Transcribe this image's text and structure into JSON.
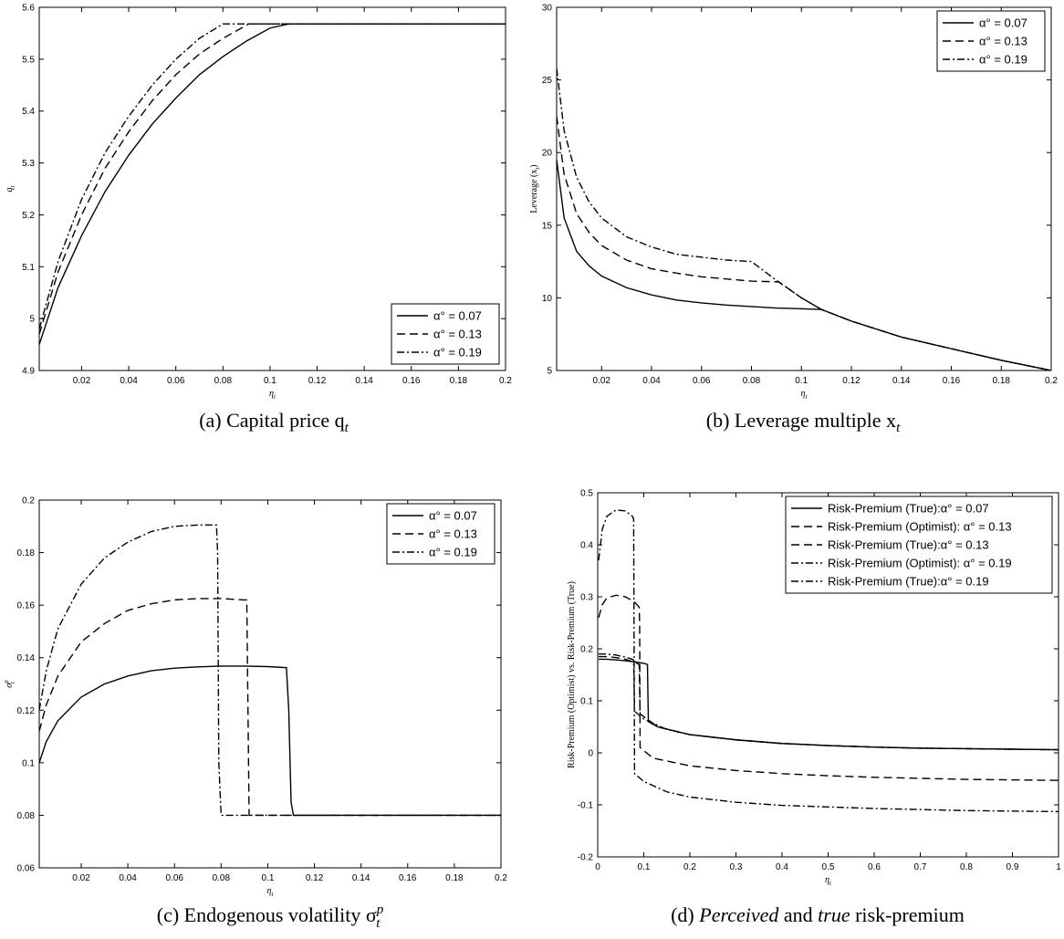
{
  "chart_data": [
    {
      "id": "a",
      "type": "line",
      "caption": "(a) Capital price q",
      "caption_math_sub": "t",
      "xlabel": "η",
      "xlabel_sub": "t",
      "ylabel": "q",
      "ylabel_sub": "t",
      "xlim": [
        0.002,
        0.2
      ],
      "ylim": [
        4.9,
        5.6
      ],
      "xticks": [
        0.02,
        0.04,
        0.06,
        0.08,
        0.1,
        0.12,
        0.14,
        0.16,
        0.18,
        0.2
      ],
      "xtick_labels": [
        "0.02",
        "0.04",
        "0.06",
        "0.08",
        "0.1",
        "0.12",
        "0.14",
        "0.16",
        "0.18",
        "0.2"
      ],
      "yticks": [
        4.9,
        5.0,
        5.1,
        5.2,
        5.3,
        5.4,
        5.5,
        5.6
      ],
      "ytick_labels": [
        "4.9",
        "5",
        "5.1",
        "5.2",
        "5.3",
        "5.4",
        "5.5",
        "5.6"
      ],
      "legend_position": "bottom-right",
      "series": [
        {
          "name": "α° = 0.07",
          "dash": "solid",
          "x": [
            0.002,
            0.01,
            0.02,
            0.03,
            0.04,
            0.05,
            0.06,
            0.07,
            0.08,
            0.09,
            0.1,
            0.108,
            0.2
          ],
          "y": [
            4.95,
            5.06,
            5.16,
            5.245,
            5.315,
            5.375,
            5.425,
            5.47,
            5.505,
            5.535,
            5.56,
            5.568,
            5.568
          ]
        },
        {
          "name": "α° = 0.13",
          "dash": "dashed",
          "x": [
            0.002,
            0.01,
            0.02,
            0.03,
            0.04,
            0.05,
            0.06,
            0.07,
            0.08,
            0.091,
            0.2
          ],
          "y": [
            4.97,
            5.09,
            5.2,
            5.29,
            5.36,
            5.42,
            5.47,
            5.51,
            5.54,
            5.568,
            5.568
          ]
        },
        {
          "name": "α° = 0.19",
          "dash": "dashdot",
          "x": [
            0.002,
            0.01,
            0.02,
            0.03,
            0.04,
            0.05,
            0.06,
            0.07,
            0.08,
            0.2
          ],
          "y": [
            4.98,
            5.11,
            5.23,
            5.32,
            5.39,
            5.45,
            5.5,
            5.54,
            5.568,
            5.568
          ]
        }
      ]
    },
    {
      "id": "b",
      "type": "line",
      "caption": "(b) Leverage multiple x",
      "caption_math_sub": "t",
      "xlabel": "η",
      "xlabel_sub": "t",
      "ylabel": "Leverage (x",
      "ylabel_sub": "t",
      "ylabel_suffix": ")",
      "xlim": [
        0.002,
        0.2
      ],
      "ylim": [
        5,
        30
      ],
      "xticks": [
        0.02,
        0.04,
        0.06,
        0.08,
        0.1,
        0.12,
        0.14,
        0.16,
        0.18,
        0.2
      ],
      "xtick_labels": [
        "0.02",
        "0.04",
        "0.06",
        "0.08",
        "0.1",
        "0.12",
        "0.14",
        "0.16",
        "0.18",
        "0.2"
      ],
      "yticks": [
        5,
        10,
        15,
        20,
        25,
        30
      ],
      "ytick_labels": [
        "5",
        "10",
        "15",
        "20",
        "25",
        "30"
      ],
      "legend_position": "top-right",
      "series": [
        {
          "name": "α° = 0.07",
          "dash": "solid",
          "x": [
            0.002,
            0.005,
            0.01,
            0.015,
            0.02,
            0.03,
            0.04,
            0.05,
            0.06,
            0.07,
            0.08,
            0.09,
            0.1,
            0.108,
            0.12,
            0.14,
            0.16,
            0.18,
            0.2
          ],
          "y": [
            19.5,
            15.5,
            13.2,
            12.2,
            11.5,
            10.7,
            10.2,
            9.85,
            9.65,
            9.5,
            9.4,
            9.3,
            9.25,
            9.2,
            8.4,
            7.3,
            6.5,
            5.7,
            5.0
          ]
        },
        {
          "name": "α° = 0.13",
          "dash": "dashed",
          "x": [
            0.002,
            0.005,
            0.01,
            0.015,
            0.02,
            0.03,
            0.04,
            0.05,
            0.06,
            0.07,
            0.08,
            0.091,
            0.1,
            0.108,
            0.12,
            0.14,
            0.16,
            0.18,
            0.2
          ],
          "y": [
            22.5,
            18.5,
            15.8,
            14.5,
            13.6,
            12.6,
            12.0,
            11.7,
            11.45,
            11.3,
            11.15,
            11.1,
            10.0,
            9.2,
            8.4,
            7.3,
            6.5,
            5.7,
            5.0
          ]
        },
        {
          "name": "α° = 0.19",
          "dash": "dashdot",
          "x": [
            0.002,
            0.005,
            0.01,
            0.015,
            0.02,
            0.03,
            0.04,
            0.05,
            0.06,
            0.07,
            0.08,
            0.09,
            0.1,
            0.108,
            0.12,
            0.14,
            0.16,
            0.18,
            0.2
          ],
          "y": [
            25.8,
            21.5,
            18.3,
            16.6,
            15.5,
            14.2,
            13.5,
            13.0,
            12.8,
            12.6,
            12.5,
            11.2,
            10.0,
            9.2,
            8.4,
            7.3,
            6.5,
            5.7,
            5.0
          ]
        }
      ]
    },
    {
      "id": "c",
      "type": "line",
      "caption": "(c) Endogenous volatility σ",
      "caption_math_sub": "t",
      "caption_math_sup": "p",
      "xlabel": "η",
      "xlabel_sub": "t",
      "ylabel": "σ",
      "ylabel_sub": "t",
      "ylabel_sup": "p",
      "xlim": [
        0.002,
        0.2
      ],
      "ylim": [
        0.06,
        0.2
      ],
      "xticks": [
        0.02,
        0.04,
        0.06,
        0.08,
        0.1,
        0.12,
        0.14,
        0.16,
        0.18,
        0.2
      ],
      "xtick_labels": [
        "0.02",
        "0.04",
        "0.06",
        "0.08",
        "0.1",
        "0.12",
        "0.14",
        "0.16",
        "0.18",
        "0.2"
      ],
      "yticks": [
        0.06,
        0.08,
        0.1,
        0.12,
        0.14,
        0.16,
        0.18,
        0.2
      ],
      "ytick_labels": [
        "0.06",
        "0.08",
        "0.1",
        "0.12",
        "0.14",
        "0.16",
        "0.18",
        "0.2"
      ],
      "legend_position": "top-right",
      "series": [
        {
          "name": "α° = 0.07",
          "dash": "solid",
          "x": [
            0.002,
            0.005,
            0.01,
            0.02,
            0.03,
            0.04,
            0.05,
            0.06,
            0.07,
            0.08,
            0.09,
            0.1,
            0.108,
            0.109,
            0.11,
            0.111,
            0.2
          ],
          "y": [
            0.1,
            0.108,
            0.116,
            0.125,
            0.13,
            0.133,
            0.135,
            0.136,
            0.1365,
            0.1368,
            0.1368,
            0.1366,
            0.1362,
            0.12,
            0.085,
            0.08,
            0.08
          ]
        },
        {
          "name": "α° = 0.13",
          "dash": "dashed",
          "x": [
            0.002,
            0.005,
            0.01,
            0.02,
            0.03,
            0.04,
            0.05,
            0.06,
            0.07,
            0.08,
            0.09,
            0.091,
            0.092,
            0.2
          ],
          "y": [
            0.112,
            0.122,
            0.133,
            0.146,
            0.153,
            0.158,
            0.1605,
            0.162,
            0.1625,
            0.1625,
            0.162,
            0.162,
            0.08,
            0.08
          ]
        },
        {
          "name": "α° = 0.19",
          "dash": "dashdot",
          "x": [
            0.002,
            0.005,
            0.01,
            0.02,
            0.03,
            0.04,
            0.05,
            0.06,
            0.07,
            0.078,
            0.0785,
            0.079,
            0.08,
            0.2
          ],
          "y": [
            0.12,
            0.135,
            0.151,
            0.168,
            0.178,
            0.184,
            0.188,
            0.19,
            0.1905,
            0.1905,
            0.18,
            0.1,
            0.08,
            0.08
          ]
        }
      ]
    },
    {
      "id": "d",
      "type": "line",
      "caption_pre": "(d) ",
      "caption_em1": "Perceived",
      "caption_mid": " and ",
      "caption_em2": "true",
      "caption_post": " risk-premium",
      "xlabel": "η",
      "xlabel_sub": "t",
      "ylabel": "Risk-Premium (Optimist) vs. Risk-Premium (True)",
      "xlim": [
        0,
        1
      ],
      "ylim": [
        -0.2,
        0.5
      ],
      "xticks": [
        0,
        0.1,
        0.2,
        0.3,
        0.4,
        0.5,
        0.6,
        0.7,
        0.8,
        0.9,
        1
      ],
      "xtick_labels": [
        "0",
        "0.1",
        "0.2",
        "0.3",
        "0.4",
        "0.5",
        "0.6",
        "0.7",
        "0.8",
        "0.9",
        "1"
      ],
      "yticks": [
        -0.2,
        -0.1,
        0,
        0.1,
        0.2,
        0.3,
        0.4,
        0.5
      ],
      "ytick_labels": [
        "-0.2",
        "-0.1",
        "0",
        "0.1",
        "0.2",
        "0.3",
        "0.4",
        "0.5"
      ],
      "legend_position": "top-right",
      "series": [
        {
          "name": "Risk-Premium (True):α° = 0.07",
          "dash": "solid",
          "x": [
            0.002,
            0.02,
            0.05,
            0.08,
            0.1,
            0.108,
            0.109,
            0.11,
            0.13,
            0.2,
            0.3,
            0.4,
            0.5,
            0.6,
            0.7,
            0.8,
            0.9,
            1.0
          ],
          "y": [
            0.18,
            0.18,
            0.178,
            0.175,
            0.172,
            0.17,
            0.11,
            0.06,
            0.05,
            0.035,
            0.025,
            0.018,
            0.014,
            0.011,
            0.009,
            0.008,
            0.007,
            0.006
          ]
        },
        {
          "name": "Risk-Premium (Optimist): α° = 0.13",
          "dash": "dashed",
          "x": [
            0.002,
            0.01,
            0.02,
            0.04,
            0.06,
            0.08,
            0.09,
            0.091,
            0.092,
            0.12,
            0.2,
            0.3,
            0.4,
            0.5,
            0.6,
            0.7,
            0.8,
            0.9,
            1.0
          ],
          "y": [
            0.26,
            0.285,
            0.298,
            0.303,
            0.3,
            0.29,
            0.28,
            0.25,
            0.01,
            -0.01,
            -0.025,
            -0.034,
            -0.04,
            -0.044,
            -0.047,
            -0.049,
            -0.051,
            -0.052,
            -0.053
          ]
        },
        {
          "name": "Risk-Premium (True):α° = 0.13",
          "dash": "dashed",
          "x": [
            0.002,
            0.02,
            0.04,
            0.06,
            0.08,
            0.09,
            0.091,
            0.092,
            0.13,
            0.2,
            0.3,
            0.4,
            0.5,
            0.6,
            0.7,
            0.8,
            0.9,
            1.0
          ],
          "y": [
            0.185,
            0.185,
            0.183,
            0.18,
            0.174,
            0.17,
            0.12,
            0.075,
            0.05,
            0.035,
            0.025,
            0.018,
            0.014,
            0.011,
            0.009,
            0.008,
            0.007,
            0.006
          ]
        },
        {
          "name": "Risk-Premium (Optimist): α° = 0.19",
          "dash": "dashdot",
          "x": [
            0.002,
            0.01,
            0.02,
            0.04,
            0.06,
            0.075,
            0.078,
            0.079,
            0.08,
            0.1,
            0.15,
            0.2,
            0.3,
            0.4,
            0.5,
            0.6,
            0.7,
            0.8,
            0.9,
            1.0
          ],
          "y": [
            0.37,
            0.43,
            0.455,
            0.467,
            0.465,
            0.455,
            0.45,
            0.2,
            -0.04,
            -0.055,
            -0.075,
            -0.085,
            -0.095,
            -0.101,
            -0.104,
            -0.107,
            -0.109,
            -0.111,
            -0.112,
            -0.113
          ]
        },
        {
          "name": "Risk-Premium (True):α° = 0.19",
          "dash": "dashdot",
          "x": [
            0.002,
            0.01,
            0.02,
            0.04,
            0.06,
            0.075,
            0.078,
            0.079,
            0.08,
            0.1,
            0.15,
            0.2,
            0.3,
            0.4,
            0.5,
            0.6,
            0.7,
            0.8,
            0.9,
            1.0
          ],
          "y": [
            0.19,
            0.19,
            0.19,
            0.188,
            0.184,
            0.18,
            0.178,
            0.13,
            0.08,
            0.065,
            0.045,
            0.035,
            0.025,
            0.018,
            0.014,
            0.011,
            0.009,
            0.008,
            0.007,
            0.006
          ]
        }
      ]
    }
  ]
}
